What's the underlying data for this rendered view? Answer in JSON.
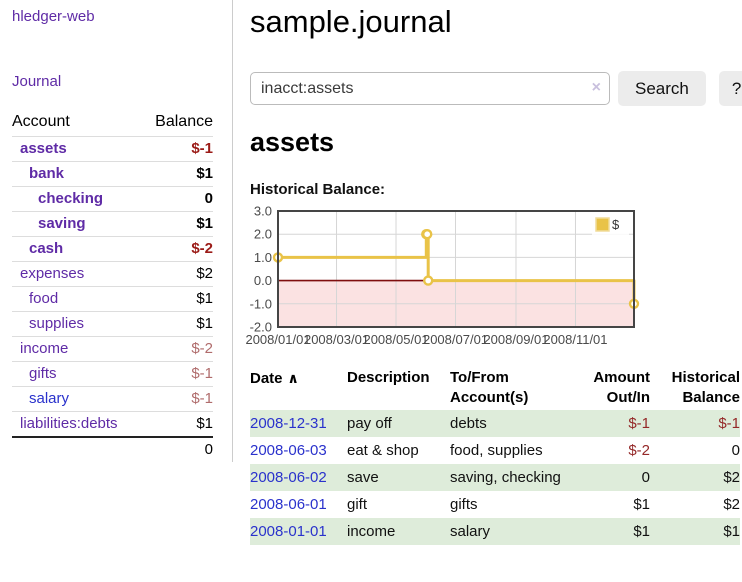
{
  "app": {
    "brand": "hledger-web"
  },
  "nav": {
    "journal": "Journal"
  },
  "sidebar": {
    "header": {
      "account": "Account",
      "balance": "Balance"
    },
    "accounts": [
      {
        "name": "assets",
        "balance": "$-1",
        "level": 1,
        "emph": true,
        "tone": "neg",
        "link": "purple"
      },
      {
        "name": "bank",
        "balance": "$1",
        "level": 2,
        "emph": true,
        "tone": "pos",
        "link": "purple"
      },
      {
        "name": "checking",
        "balance": "0",
        "level": 3,
        "emph": true,
        "tone": "pos",
        "link": "purple"
      },
      {
        "name": "saving",
        "balance": "$1",
        "level": 3,
        "emph": true,
        "tone": "pos",
        "link": "purple"
      },
      {
        "name": "cash",
        "balance": "$-2",
        "level": 2,
        "emph": true,
        "tone": "neg",
        "link": "purple"
      },
      {
        "name": "expenses",
        "balance": "$2",
        "level": 1,
        "emph": false,
        "tone": "pos",
        "link": "purple"
      },
      {
        "name": "food",
        "balance": "$1",
        "level": 2,
        "emph": false,
        "tone": "pos",
        "link": "purple"
      },
      {
        "name": "supplies",
        "balance": "$1",
        "level": 2,
        "emph": false,
        "tone": "pos",
        "link": "purple"
      },
      {
        "name": "income",
        "balance": "$-2",
        "level": 1,
        "emph": false,
        "tone": "mutedneg",
        "link": "purple"
      },
      {
        "name": "gifts",
        "balance": "$-1",
        "level": 2,
        "emph": false,
        "tone": "mutedneg",
        "link": "purple"
      },
      {
        "name": "salary",
        "balance": "$-1",
        "level": 2,
        "emph": false,
        "tone": "mutedneg",
        "link": "blue"
      },
      {
        "name": "liabilities:debts",
        "balance": "$1",
        "level": 1,
        "emph": false,
        "tone": "pos",
        "link": "purple"
      }
    ],
    "total": "0"
  },
  "header": {
    "title": "sample.journal"
  },
  "search": {
    "value": "inacct:assets",
    "clear_icon": "×",
    "button_label": "Search",
    "help_label": "?"
  },
  "account_page": {
    "title": "assets",
    "chart_label": "Historical Balance:"
  },
  "chart_data": {
    "type": "line",
    "title": "Historical Balance",
    "step": true,
    "series": [
      {
        "name": "$",
        "points": [
          [
            "2008/01/01",
            1
          ],
          [
            "2008/06/01",
            2
          ],
          [
            "2008/06/02",
            2
          ],
          [
            "2008/06/03",
            0
          ],
          [
            "2008/12/31",
            -1
          ]
        ]
      }
    ],
    "x_ticks": [
      "2008/01/01",
      "2008/03/01",
      "2008/05/01",
      "2008/07/01",
      "2008/09/01",
      "2008/11/01"
    ],
    "y_ticks": [
      "3.0",
      "2.0",
      "1.0",
      "0.0",
      "-1.0",
      "-2.0"
    ],
    "ylim": [
      -2,
      3
    ],
    "x_range": [
      "2008/01/01",
      "2008/12/31"
    ],
    "legend": {
      "label": "$",
      "position": "top-right"
    },
    "grid": true,
    "colors": {
      "line": "#e9c348",
      "marker_fill": "#ffffff",
      "grid": "#d6d6d6",
      "border": "#454545",
      "tick_text": "#4a4a4a",
      "negative_region": "#f8caca",
      "zero_line": "#7f0d0d",
      "legend_square_border": "#f0dc9a"
    }
  },
  "register": {
    "headers": {
      "date": "Date",
      "description": "Description",
      "accounts": "To/From Account(s)",
      "amount": "Amount Out/In",
      "balance": "Historical Balance"
    },
    "sort_icon": "∧",
    "rows": [
      {
        "date": "2008-12-31",
        "description": "pay off",
        "accounts": "debts",
        "amount": "$-1",
        "balance": "$-1",
        "amount_neg": true,
        "balance_neg": true,
        "shade": true
      },
      {
        "date": "2008-06-03",
        "description": "eat & shop",
        "accounts": "food, supplies",
        "amount": "$-2",
        "balance": "0",
        "amount_neg": true,
        "balance_neg": false,
        "shade": false
      },
      {
        "date": "2008-06-02",
        "description": "save",
        "accounts": "saving, checking",
        "amount": "0",
        "balance": "$2",
        "amount_neg": false,
        "balance_neg": false,
        "shade": true
      },
      {
        "date": "2008-06-01",
        "description": "gift",
        "accounts": "gifts",
        "amount": "$1",
        "balance": "$2",
        "amount_neg": false,
        "balance_neg": false,
        "shade": false
      },
      {
        "date": "2008-01-01",
        "description": "income",
        "accounts": "salary",
        "amount": "$1",
        "balance": "$1",
        "amount_neg": false,
        "balance_neg": false,
        "shade": true
      }
    ]
  }
}
